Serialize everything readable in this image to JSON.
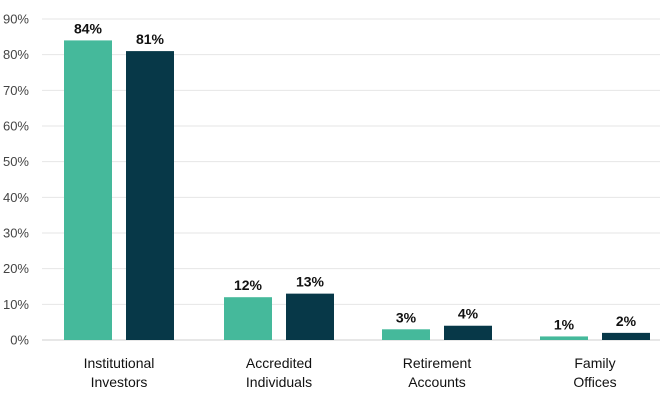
{
  "chart_data": {
    "type": "bar",
    "categories": [
      [
        "Institutional",
        "Investors"
      ],
      [
        "Accredited",
        "Individuals"
      ],
      [
        "Retirement",
        "Accounts"
      ],
      [
        "Family",
        "Offices"
      ]
    ],
    "series": [
      {
        "values": [
          84,
          12,
          3,
          1
        ],
        "data_labels": [
          "84%",
          "12%",
          "3%",
          "1%"
        ],
        "color": "#45b99b"
      },
      {
        "values": [
          81,
          13,
          4,
          2
        ],
        "data_labels": [
          "81%",
          "13%",
          "4%",
          "2%"
        ],
        "color": "#073848"
      }
    ],
    "ylim": [
      0,
      90
    ],
    "yticks": [
      0,
      10,
      20,
      30,
      40,
      50,
      60,
      70,
      80,
      90
    ],
    "ytick_labels": [
      "0%",
      "10%",
      "20%",
      "30%",
      "40%",
      "50%",
      "60%",
      "70%",
      "80%",
      "90%"
    ],
    "grid": true,
    "legend": "none"
  }
}
